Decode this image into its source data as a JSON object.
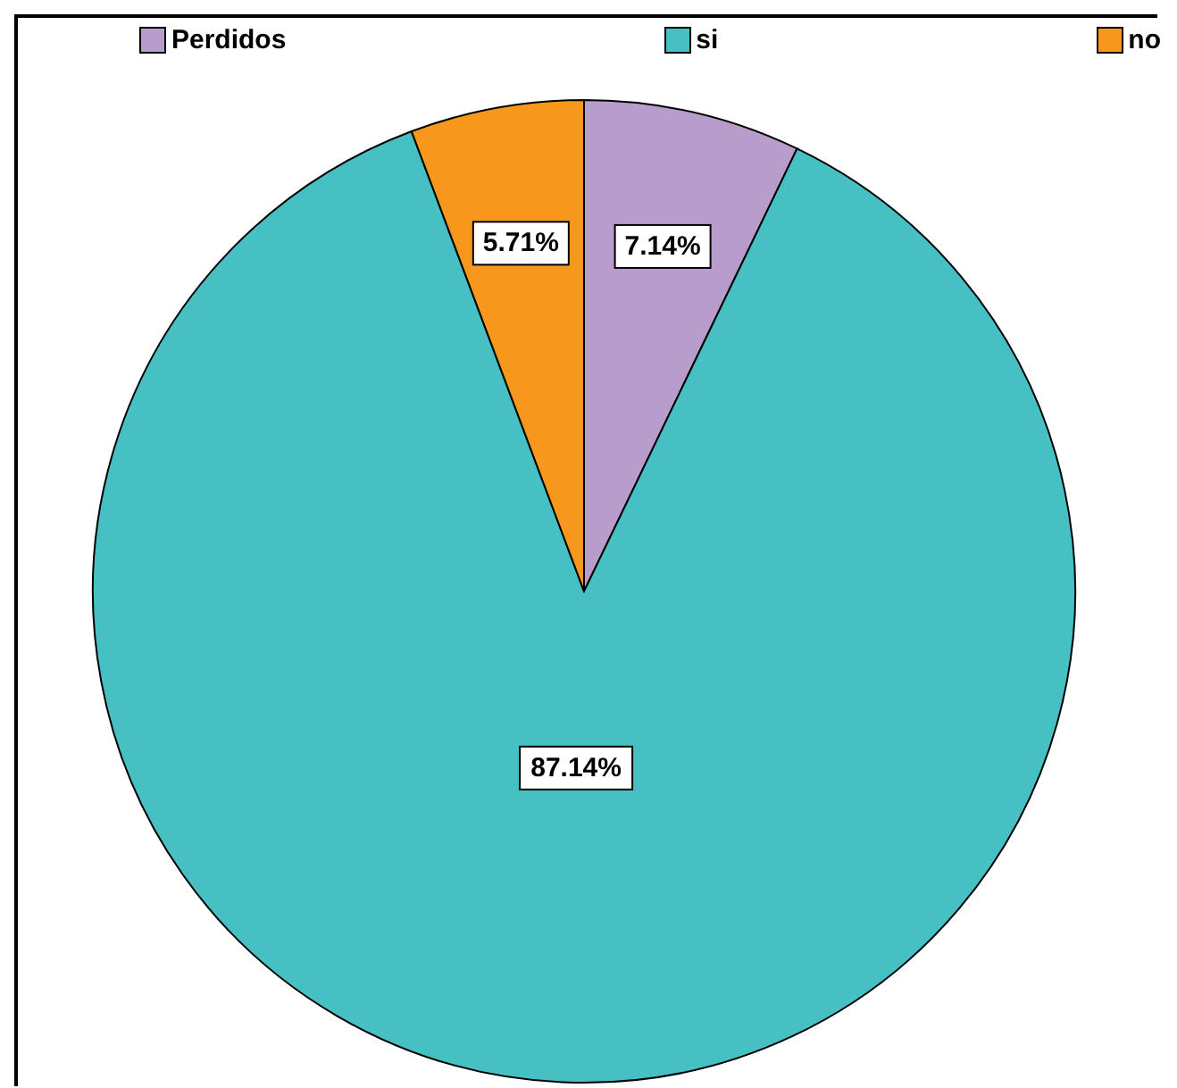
{
  "chart_data": {
    "type": "pie",
    "categories": [
      "Perdidos",
      "si",
      "no"
    ],
    "values": [
      7.14,
      87.14,
      5.71
    ],
    "colors": [
      "#b89ccb",
      "#47c0c4",
      "#f7981d"
    ],
    "value_labels": [
      "7.14%",
      "87.14%",
      "5.71%"
    ],
    "legend": "top"
  }
}
